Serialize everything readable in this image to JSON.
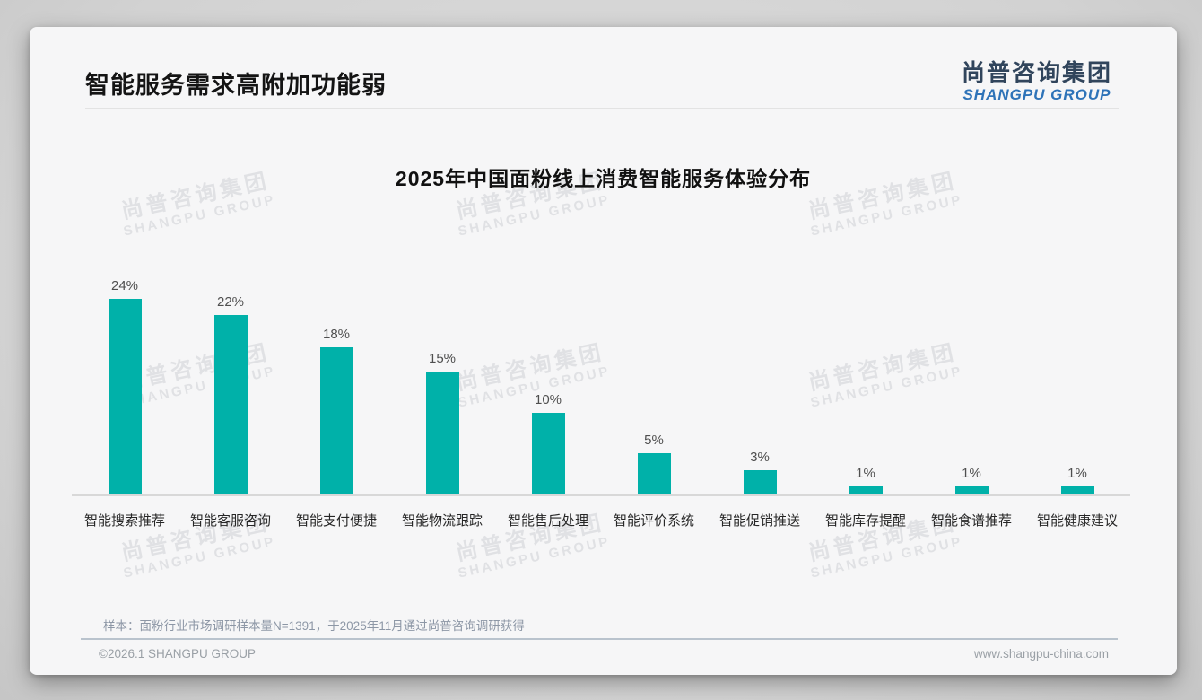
{
  "page": {
    "title": "智能服务需求高附加功能弱",
    "logo": {
      "cn": "尚普咨询集团",
      "en": "SHANGPU GROUP"
    },
    "watermark": {
      "cn": "尚普咨询集团",
      "en": "SHANGPU GROUP"
    },
    "note": "样本：面粉行业市场调研样本量N=1391，于2025年11月通过尚普咨询调研获得",
    "footer_left": "©2026.1 SHANGPU GROUP",
    "footer_right": "www.shangpu-china.com"
  },
  "chart_data": {
    "type": "bar",
    "title": "2025年中国面粉线上消费智能服务体验分布",
    "categories": [
      "智能搜索推荐",
      "智能客服咨询",
      "智能支付便捷",
      "智能物流跟踪",
      "智能售后处理",
      "智能评价系统",
      "智能促销推送",
      "智能库存提醒",
      "智能食谱推荐",
      "智能健康建议"
    ],
    "values": [
      24,
      22,
      18,
      15,
      10,
      5,
      3,
      1,
      1,
      1
    ],
    "value_labels": [
      "24%",
      "22%",
      "18%",
      "15%",
      "10%",
      "5%",
      "3%",
      "1%",
      "1%",
      "1%"
    ],
    "unit": "%",
    "ylim": [
      0,
      26
    ],
    "bar_color": "#00b1a9",
    "grid": false,
    "legend": "none"
  }
}
